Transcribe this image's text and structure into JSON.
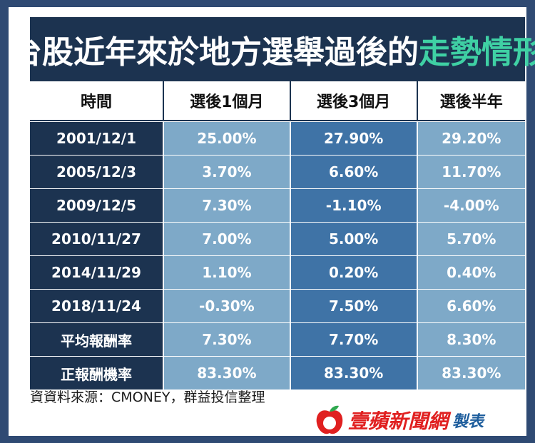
{
  "title": {
    "part1": "台股近年來於地方選舉過後的",
    "part2": "走勢情形"
  },
  "headers": [
    "時間",
    "選後1個月",
    "選後3個月",
    "選後半年"
  ],
  "rows": [
    [
      "2001/12/1",
      "25.00%",
      "27.90%",
      "29.20%"
    ],
    [
      "2005/12/3",
      "3.70%",
      "6.60%",
      "11.70%"
    ],
    [
      "2009/12/5",
      "7.30%",
      "-1.10%",
      "-4.00%"
    ],
    [
      "2010/11/27",
      "7.00%",
      "5.00%",
      "5.70%"
    ],
    [
      "2014/11/29",
      "1.10%",
      "0.20%",
      "0.40%"
    ],
    [
      "2018/11/24",
      "-0.30%",
      "7.50%",
      "6.60%"
    ],
    [
      "平均報酬率",
      "7.30%",
      "7.70%",
      "8.30%"
    ],
    [
      "正報酬機率",
      "83.30%",
      "83.30%",
      "83.30%"
    ]
  ],
  "source": "資資料來源：CMONEY，群益投信整理",
  "brand": {
    "name": "壹蘋新聞網",
    "suffix": "製表",
    "logo_icon": "apple-icon"
  },
  "colors": {
    "background": "#2f4a73",
    "title_bg": "#1c3350",
    "title_accent": "#3fd0a4",
    "cell_light": "#7ea9c8",
    "cell_dark": "#3f73a6",
    "brand_red": "#e02020",
    "brand_blue": "#1c5c9c"
  }
}
